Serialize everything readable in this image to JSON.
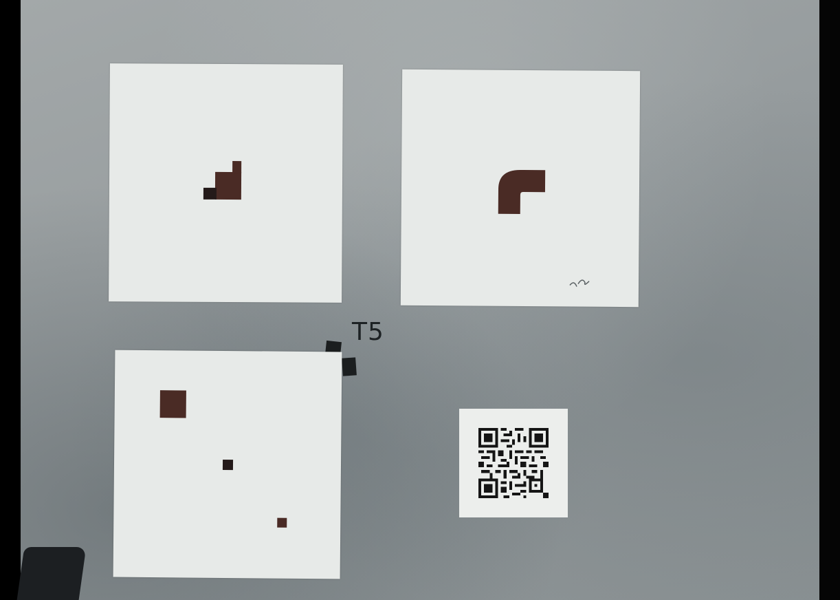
{
  "scene": {
    "handwritten_label": "T5",
    "colors": {
      "surface": "#969c9e",
      "card": "#e7eae8",
      "marker": "#4a2b25",
      "tape": "#1b1e1f"
    }
  },
  "qr_code": {
    "icon": "qr-code-icon"
  }
}
